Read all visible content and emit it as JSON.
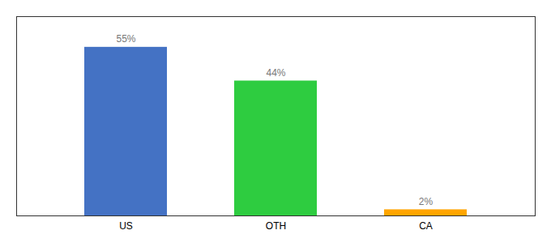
{
  "chart_data": {
    "type": "bar",
    "categories": [
      "US",
      "OTH",
      "CA"
    ],
    "values": [
      55,
      44,
      2
    ],
    "value_labels": [
      "55%",
      "44%",
      "2%"
    ],
    "colors": [
      "#4472C4",
      "#2ECC40",
      "#FFA500"
    ],
    "ylim": [
      0,
      65
    ],
    "data_labels": true,
    "tick_labels": "x",
    "grid": false
  }
}
